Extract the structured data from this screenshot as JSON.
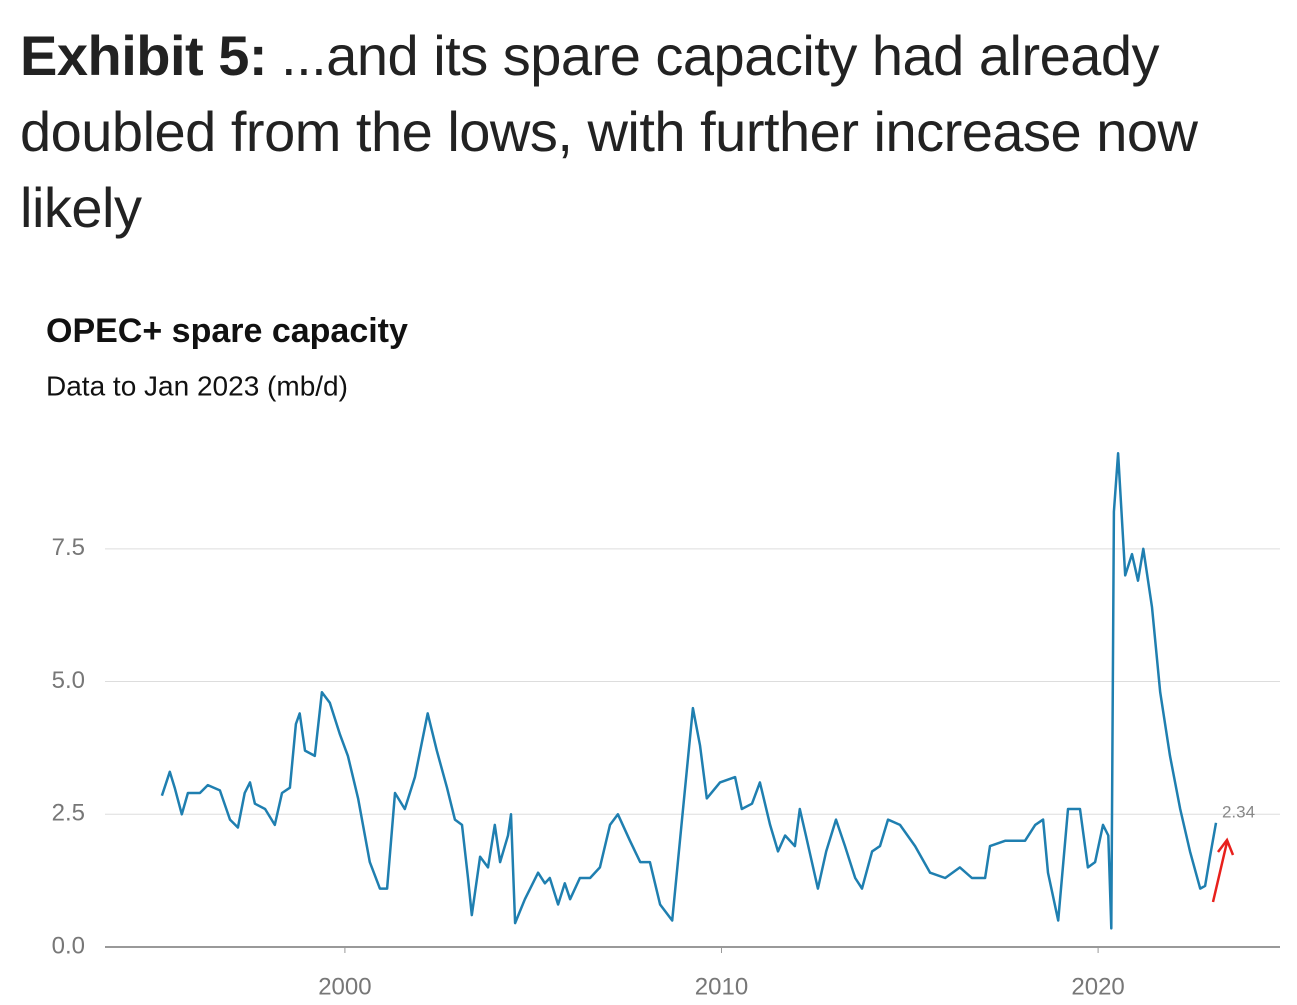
{
  "header": {
    "label": "Exhibit 5:",
    "text": "...and its spare capacity had already doubled from the lows, with further increase now likely"
  },
  "chart_data": {
    "type": "line",
    "title": "OPEC+ spare capacity",
    "subtitle": "Data to Jan 2023 (mb/d)",
    "x": [
      1995.14,
      1995.35,
      1995.48,
      1995.67,
      1995.83,
      1996.15,
      1996.36,
      1996.68,
      1996.95,
      1997.16,
      1997.34,
      1997.48,
      1997.61,
      1997.88,
      1998.14,
      1998.33,
      1998.54,
      1998.7,
      1998.8,
      1998.94,
      1999.2,
      1999.39,
      1999.6,
      1999.87,
      2000.08,
      2000.35,
      2000.66,
      2000.93,
      2001.12,
      2001.33,
      2001.59,
      2001.86,
      2002.2,
      2002.44,
      2002.71,
      2002.92,
      2003.11,
      2003.27,
      2003.37,
      2003.59,
      2003.8,
      2003.98,
      2004.12,
      2004.33,
      2004.41,
      2004.52,
      2004.78,
      2005.13,
      2005.31,
      2005.44,
      2005.66,
      2005.84,
      2005.98,
      2006.24,
      2006.51,
      2006.77,
      2007.04,
      2007.25,
      2007.57,
      2007.84,
      2008.1,
      2008.37,
      2008.69,
      2008.95,
      2009.24,
      2009.43,
      2009.61,
      2009.96,
      2010.36,
      2010.54,
      2010.81,
      2011.02,
      2011.29,
      2011.5,
      2011.69,
      2011.95,
      2012.08,
      2012.24,
      2012.56,
      2012.78,
      2013.04,
      2013.28,
      2013.55,
      2013.73,
      2014.0,
      2014.21,
      2014.42,
      2014.74,
      2015.14,
      2015.54,
      2015.94,
      2016.33,
      2016.65,
      2017.0,
      2017.13,
      2017.53,
      2018.06,
      2018.33,
      2018.54,
      2018.67,
      2018.94,
      2019.2,
      2019.52,
      2019.73,
      2019.92,
      2020.13,
      2020.27,
      2020.35,
      2020.42,
      2020.53,
      2020.72,
      2020.9,
      2021.06,
      2021.2,
      2021.43,
      2021.65,
      2021.91,
      2022.18,
      2022.44,
      2022.71,
      2022.84,
      2022.97,
      2023.13
    ],
    "series": [
      {
        "color": "#1f7fb0",
        "values": [
          2.85,
          3.3,
          3.0,
          2.5,
          2.9,
          2.9,
          3.05,
          2.95,
          2.4,
          2.25,
          2.9,
          3.1,
          2.7,
          2.6,
          2.3,
          2.9,
          3.0,
          4.2,
          4.4,
          3.7,
          3.6,
          4.8,
          4.6,
          4.0,
          3.6,
          2.8,
          1.6,
          1.1,
          1.1,
          2.9,
          2.6,
          3.2,
          4.4,
          3.7,
          3.0,
          2.4,
          2.3,
          1.3,
          0.6,
          1.7,
          1.5,
          2.3,
          1.6,
          2.1,
          2.5,
          0.45,
          0.9,
          1.4,
          1.2,
          1.3,
          0.8,
          1.2,
          0.9,
          1.3,
          1.3,
          1.5,
          2.3,
          2.5,
          2.0,
          1.6,
          1.6,
          0.8,
          0.5,
          2.4,
          4.5,
          3.8,
          2.8,
          3.1,
          3.2,
          2.6,
          2.7,
          3.1,
          2.3,
          1.8,
          2.1,
          1.9,
          2.6,
          2.1,
          1.1,
          1.8,
          2.4,
          1.9,
          1.3,
          1.1,
          1.8,
          1.9,
          2.4,
          2.3,
          1.9,
          1.4,
          1.3,
          1.5,
          1.3,
          1.3,
          1.9,
          2.0,
          2.0,
          2.3,
          2.4,
          1.4,
          0.5,
          2.6,
          2.6,
          1.5,
          1.6,
          2.3,
          2.1,
          0.35,
          8.2,
          9.3,
          7.0,
          7.4,
          6.9,
          7.5,
          6.4,
          4.8,
          3.6,
          2.6,
          1.8,
          1.1,
          1.15,
          1.7,
          2.34
        ]
      }
    ],
    "xlim": [
      1993.63,
      2024.83
    ],
    "xticks": [
      2000,
      2010,
      2020
    ],
    "ylim": [
      0,
      9.55
    ],
    "yticks": [
      {
        "value": 0,
        "label": "0.0"
      },
      2.5,
      {
        "value": 5,
        "label": "5.0"
      },
      7.5
    ],
    "grid": true
  }
}
